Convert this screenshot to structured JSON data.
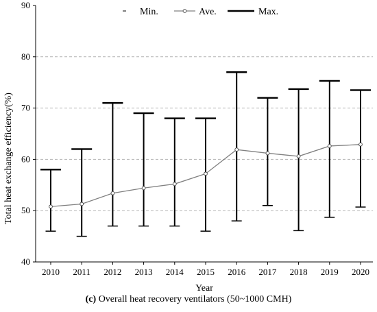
{
  "chart_data": {
    "type": "line",
    "ylabel": "Total heat exchange efficiency(%)",
    "xlabel": "Year",
    "ylim": [
      40,
      90
    ],
    "yticks": [
      40,
      50,
      60,
      70,
      80,
      90
    ],
    "grid": "horizontal-dashed",
    "legend_position": "top-center",
    "legend": [
      "Min.",
      "Ave.",
      "Max."
    ],
    "categories": [
      "2010",
      "2011",
      "2012",
      "2013",
      "2014",
      "2015",
      "2016",
      "2017",
      "2018",
      "2019",
      "2020"
    ],
    "series": [
      {
        "name": "Min.",
        "values": [
          46,
          45,
          47,
          47,
          47,
          46,
          48,
          51,
          46.1,
          48.7,
          50.7
        ]
      },
      {
        "name": "Ave.",
        "values": [
          50.8,
          51.3,
          53.4,
          54.4,
          55.2,
          57.2,
          61.9,
          61.2,
          60.6,
          62.6,
          62.9
        ]
      },
      {
        "name": "Max.",
        "values": [
          58,
          62,
          71,
          69,
          68,
          68,
          77,
          72,
          73.7,
          75.3,
          73.5
        ]
      }
    ],
    "colors": {
      "ave_line": "#808080",
      "error_bar": "#000000",
      "grid": "#b3b3b3"
    }
  },
  "caption": {
    "label": "(c)",
    "text": " Overall heat recovery ventilators (50~1000 CMH)"
  }
}
